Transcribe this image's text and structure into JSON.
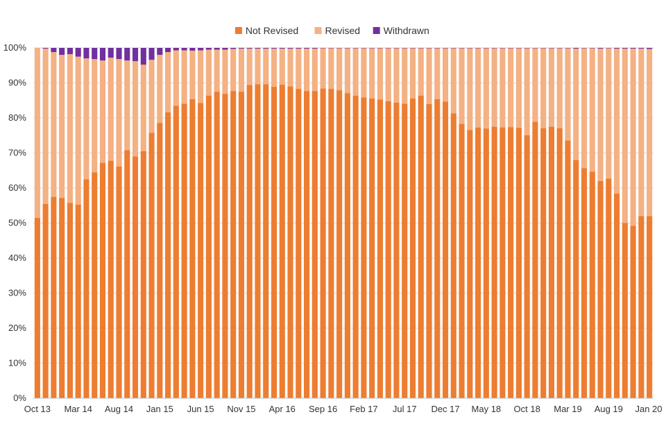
{
  "chart_data": {
    "type": "bar",
    "stacked": true,
    "title": "",
    "xlabel": "",
    "ylabel": "",
    "ylim": [
      0,
      100
    ],
    "y_ticks": [
      "0%",
      "10%",
      "20%",
      "30%",
      "40%",
      "50%",
      "60%",
      "70%",
      "80%",
      "90%",
      "100%"
    ],
    "y_tick_values": [
      0,
      10,
      20,
      30,
      40,
      50,
      60,
      70,
      80,
      90,
      100
    ],
    "x_tick_labels": [
      "Oct 13",
      "Mar 14",
      "Aug 14",
      "Jan 15",
      "Jun 15",
      "Nov 15",
      "Apr 16",
      "Sep 16",
      "Feb 17",
      "Jul 17",
      "Dec 17",
      "May 18",
      "Oct 18",
      "Mar 19",
      "Aug 19",
      "Jan 20"
    ],
    "legend_position": "top-center",
    "categories": [
      "Oct 13",
      "Nov 13",
      "Dec 13",
      "Jan 14",
      "Feb 14",
      "Mar 14",
      "Apr 14",
      "May 14",
      "Jun 14",
      "Jul 14",
      "Aug 14",
      "Sep 14",
      "Oct 14",
      "Nov 14",
      "Dec 14",
      "Jan 15",
      "Feb 15",
      "Mar 15",
      "Apr 15",
      "May 15",
      "Jun 15",
      "Jul 15",
      "Aug 15",
      "Sep 15",
      "Oct 15",
      "Nov 15",
      "Dec 15",
      "Jan 16",
      "Feb 16",
      "Mar 16",
      "Apr 16",
      "May 16",
      "Jun 16",
      "Jul 16",
      "Aug 16",
      "Sep 16",
      "Oct 16",
      "Nov 16",
      "Dec 16",
      "Jan 17",
      "Feb 17",
      "Mar 17",
      "Apr 17",
      "May 17",
      "Jun 17",
      "Jul 17",
      "Aug 17",
      "Sep 17",
      "Oct 17",
      "Nov 17",
      "Dec 17",
      "Jan 18",
      "Feb 18",
      "Mar 18",
      "Apr 18",
      "May 18",
      "Jun 18",
      "Jul 18",
      "Aug 18",
      "Sep 18",
      "Oct 18",
      "Nov 18",
      "Dec 18",
      "Jan 19",
      "Feb 19",
      "Mar 19",
      "Apr 19",
      "May 19",
      "Jun 19",
      "Jul 19",
      "Aug 19",
      "Sep 19",
      "Oct 19",
      "Nov 19",
      "Dec 19",
      "Jan 20"
    ],
    "series": [
      {
        "name": "Not Revised",
        "color": "#ED7D31",
        "values": [
          51.5,
          55.5,
          57.5,
          57.2,
          55.8,
          55.3,
          62.5,
          64.5,
          67.2,
          67.8,
          66.2,
          70.8,
          69.0,
          70.5,
          75.8,
          78.6,
          81.6,
          83.5,
          84.1,
          85.4,
          84.3,
          86.4,
          87.5,
          86.9,
          87.7,
          87.5,
          89.4,
          89.6,
          89.6,
          88.9,
          89.5,
          89.0,
          88.3,
          87.7,
          87.7,
          88.4,
          88.3,
          87.9,
          87.1,
          86.4,
          85.9,
          85.6,
          85.3,
          84.8,
          84.4,
          84.1,
          85.6,
          86.4,
          84.0,
          85.4,
          84.7,
          81.3,
          78.3,
          76.6,
          77.3,
          77.0,
          77.5,
          77.3,
          77.4,
          77.2,
          75.1,
          78.9,
          77.1,
          77.5,
          77.1,
          73.6,
          68.0,
          65.7,
          64.7,
          62.0,
          62.7,
          58.4,
          50.0,
          49.2,
          52.0,
          52.0
        ]
      },
      {
        "name": "Revised",
        "color": "#F4B183",
        "values": [
          48.5,
          44.3,
          41.3,
          40.8,
          42.4,
          42.2,
          34.5,
          32.3,
          29.2,
          29.4,
          30.6,
          25.6,
          27.2,
          24.7,
          20.8,
          19.4,
          17.2,
          15.8,
          15.2,
          13.8,
          15.0,
          13.1,
          12.0,
          12.6,
          12.0,
          12.3,
          10.4,
          10.2,
          10.2,
          10.9,
          10.3,
          10.8,
          11.5,
          12.1,
          12.1,
          11.5,
          11.6,
          12.0,
          12.8,
          13.5,
          14.0,
          14.3,
          14.6,
          15.1,
          15.5,
          15.8,
          14.3,
          13.5,
          15.9,
          14.5,
          15.2,
          18.6,
          21.6,
          23.3,
          22.6,
          22.9,
          22.4,
          22.6,
          22.5,
          22.7,
          24.8,
          21.0,
          22.8,
          22.4,
          22.8,
          26.3,
          31.8,
          34.2,
          35.2,
          37.8,
          37.2,
          41.4,
          49.8,
          50.6,
          47.8,
          47.7
        ]
      },
      {
        "name": "Withdrawn",
        "color": "#7030A0",
        "values": [
          0.0,
          0.2,
          1.2,
          2.0,
          1.8,
          2.5,
          3.0,
          3.2,
          3.6,
          2.8,
          3.2,
          3.6,
          3.8,
          4.8,
          3.4,
          2.0,
          1.2,
          0.7,
          0.7,
          0.8,
          0.7,
          0.5,
          0.5,
          0.5,
          0.3,
          0.2,
          0.2,
          0.2,
          0.2,
          0.2,
          0.2,
          0.2,
          0.2,
          0.2,
          0.2,
          0.1,
          0.1,
          0.1,
          0.1,
          0.1,
          0.1,
          0.1,
          0.1,
          0.1,
          0.1,
          0.1,
          0.1,
          0.1,
          0.1,
          0.1,
          0.1,
          0.1,
          0.1,
          0.1,
          0.1,
          0.1,
          0.1,
          0.1,
          0.1,
          0.1,
          0.1,
          0.1,
          0.1,
          0.1,
          0.1,
          0.1,
          0.2,
          0.1,
          0.1,
          0.2,
          0.1,
          0.2,
          0.2,
          0.2,
          0.2,
          0.3
        ]
      }
    ]
  }
}
